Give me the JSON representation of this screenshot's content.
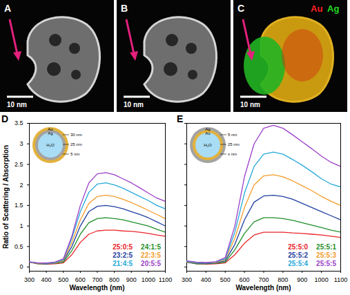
{
  "chart_data": [
    {
      "type": "line",
      "title": "D",
      "x_label": "Wavelength (nm)",
      "y_label": "Ratio of Scattering / Absorption",
      "x": [
        300,
        350,
        400,
        450,
        500,
        550,
        600,
        650,
        700,
        750,
        800,
        850,
        900,
        950,
        1000,
        1050,
        1100
      ],
      "series": [
        {
          "name": "25:0:5",
          "color": "#e8262b",
          "values": [
            0.12,
            0.08,
            0.07,
            0.08,
            0.1,
            0.3,
            0.6,
            0.8,
            0.88,
            0.9,
            0.9,
            0.88,
            0.87,
            0.85,
            0.82,
            0.78,
            0.75
          ]
        },
        {
          "name": "24:1:5",
          "color": "#1f8f2a",
          "values": [
            0.12,
            0.08,
            0.08,
            0.09,
            0.12,
            0.4,
            0.8,
            1.08,
            1.18,
            1.2,
            1.18,
            1.15,
            1.1,
            1.05,
            1.0,
            0.92,
            0.85
          ]
        },
        {
          "name": "23:2:5",
          "color": "#1f3fa0",
          "values": [
            0.12,
            0.09,
            0.08,
            0.1,
            0.15,
            0.5,
            1.0,
            1.35,
            1.48,
            1.5,
            1.47,
            1.42,
            1.35,
            1.28,
            1.2,
            1.1,
            1.0
          ]
        },
        {
          "name": "22:3:5",
          "color": "#f39c2b",
          "values": [
            0.12,
            0.09,
            0.09,
            0.1,
            0.16,
            0.6,
            1.15,
            1.55,
            1.72,
            1.75,
            1.72,
            1.65,
            1.57,
            1.48,
            1.38,
            1.28,
            1.18
          ]
        },
        {
          "name": "21:4:5",
          "color": "#27a9d8",
          "values": [
            0.12,
            0.1,
            0.09,
            0.11,
            0.18,
            0.7,
            1.35,
            1.82,
            2.02,
            2.05,
            2.0,
            1.92,
            1.82,
            1.72,
            1.62,
            1.5,
            1.42
          ]
        },
        {
          "name": "20:5:5",
          "color": "#9b3fc8",
          "values": [
            0.13,
            0.1,
            0.1,
            0.12,
            0.2,
            0.75,
            1.5,
            2.05,
            2.27,
            2.3,
            2.25,
            2.15,
            2.05,
            1.93,
            1.8,
            1.68,
            1.6
          ]
        }
      ],
      "xlim": [
        300,
        1100
      ],
      "xticks": [
        300,
        400,
        500,
        600,
        700,
        800,
        900,
        1000,
        1100
      ],
      "ylim": [
        -0.1,
        3.5
      ],
      "yticks": [
        0,
        0.5,
        1,
        1.5,
        2,
        2.5,
        3,
        3.5
      ],
      "legend": "bottom-right",
      "inset": {
        "layers": [
          "Au",
          "Ag",
          "H₂O"
        ],
        "dimensions": [
          "30 nm",
          "25 nm",
          "5 nm"
        ]
      }
    },
    {
      "type": "line",
      "title": "E",
      "x_label": "Wavelength (nm)",
      "x": [
        300,
        350,
        400,
        450,
        500,
        550,
        600,
        650,
        700,
        750,
        800,
        850,
        900,
        950,
        1000,
        1050,
        1100
      ],
      "series": [
        {
          "name": "25:5:0",
          "color": "#e8262b",
          "values": [
            0.12,
            0.08,
            0.07,
            0.08,
            0.1,
            0.3,
            0.58,
            0.78,
            0.85,
            0.85,
            0.85,
            0.83,
            0.82,
            0.8,
            0.78,
            0.75,
            0.72
          ]
        },
        {
          "name": "25:5:1",
          "color": "#1f8f2a",
          "values": [
            0.12,
            0.08,
            0.08,
            0.09,
            0.12,
            0.42,
            0.82,
            1.1,
            1.2,
            1.2,
            1.18,
            1.14,
            1.08,
            1.02,
            0.96,
            0.9,
            0.85
          ]
        },
        {
          "name": "25:5:2",
          "color": "#1f3fa0",
          "values": [
            0.12,
            0.09,
            0.09,
            0.1,
            0.15,
            0.55,
            1.15,
            1.58,
            1.73,
            1.75,
            1.72,
            1.65,
            1.55,
            1.45,
            1.35,
            1.25,
            1.15
          ]
        },
        {
          "name": "25:5:3",
          "color": "#f39c2b",
          "values": [
            0.13,
            0.1,
            0.1,
            0.11,
            0.18,
            0.7,
            1.45,
            2.0,
            2.22,
            2.25,
            2.2,
            2.1,
            1.98,
            1.86,
            1.72,
            1.6,
            1.5
          ]
        },
        {
          "name": "25:5:4",
          "color": "#27a9d8",
          "values": [
            0.14,
            0.11,
            0.1,
            0.12,
            0.2,
            0.85,
            1.8,
            2.45,
            2.75,
            2.8,
            2.75,
            2.62,
            2.48,
            2.32,
            2.15,
            2.02,
            1.95
          ]
        },
        {
          "name": "25:5:5",
          "color": "#9b3fc8",
          "values": [
            0.15,
            0.12,
            0.11,
            0.13,
            0.23,
            1.0,
            2.2,
            3.0,
            3.38,
            3.45,
            3.38,
            3.22,
            3.05,
            2.88,
            2.7,
            2.55,
            2.45
          ]
        }
      ],
      "xlim": [
        300,
        1100
      ],
      "xticks": [
        300,
        400,
        500,
        600,
        700,
        800,
        900,
        1000,
        1100
      ],
      "ylim": [
        -0.1,
        3.5
      ],
      "yticks": [
        0,
        0.5,
        1,
        1.5,
        2,
        2.5,
        3,
        3.5
      ],
      "tick_labels": "x",
      "legend": "bottom-right",
      "inset": {
        "layers": [
          "Ag",
          "Au",
          "H₂O"
        ],
        "dimensions": [
          "5 nm",
          "25 nm",
          "x nm"
        ]
      }
    }
  ],
  "image_panels": [
    {
      "label": "A",
      "scale_bar": "10 nm"
    },
    {
      "label": "B",
      "scale_bar": "10 nm"
    },
    {
      "label": "C",
      "scale_bar": "10 nm",
      "channels": [
        {
          "name": "Au",
          "color": "#ff2020"
        },
        {
          "name": "Ag",
          "color": "#22dd22"
        }
      ]
    }
  ]
}
